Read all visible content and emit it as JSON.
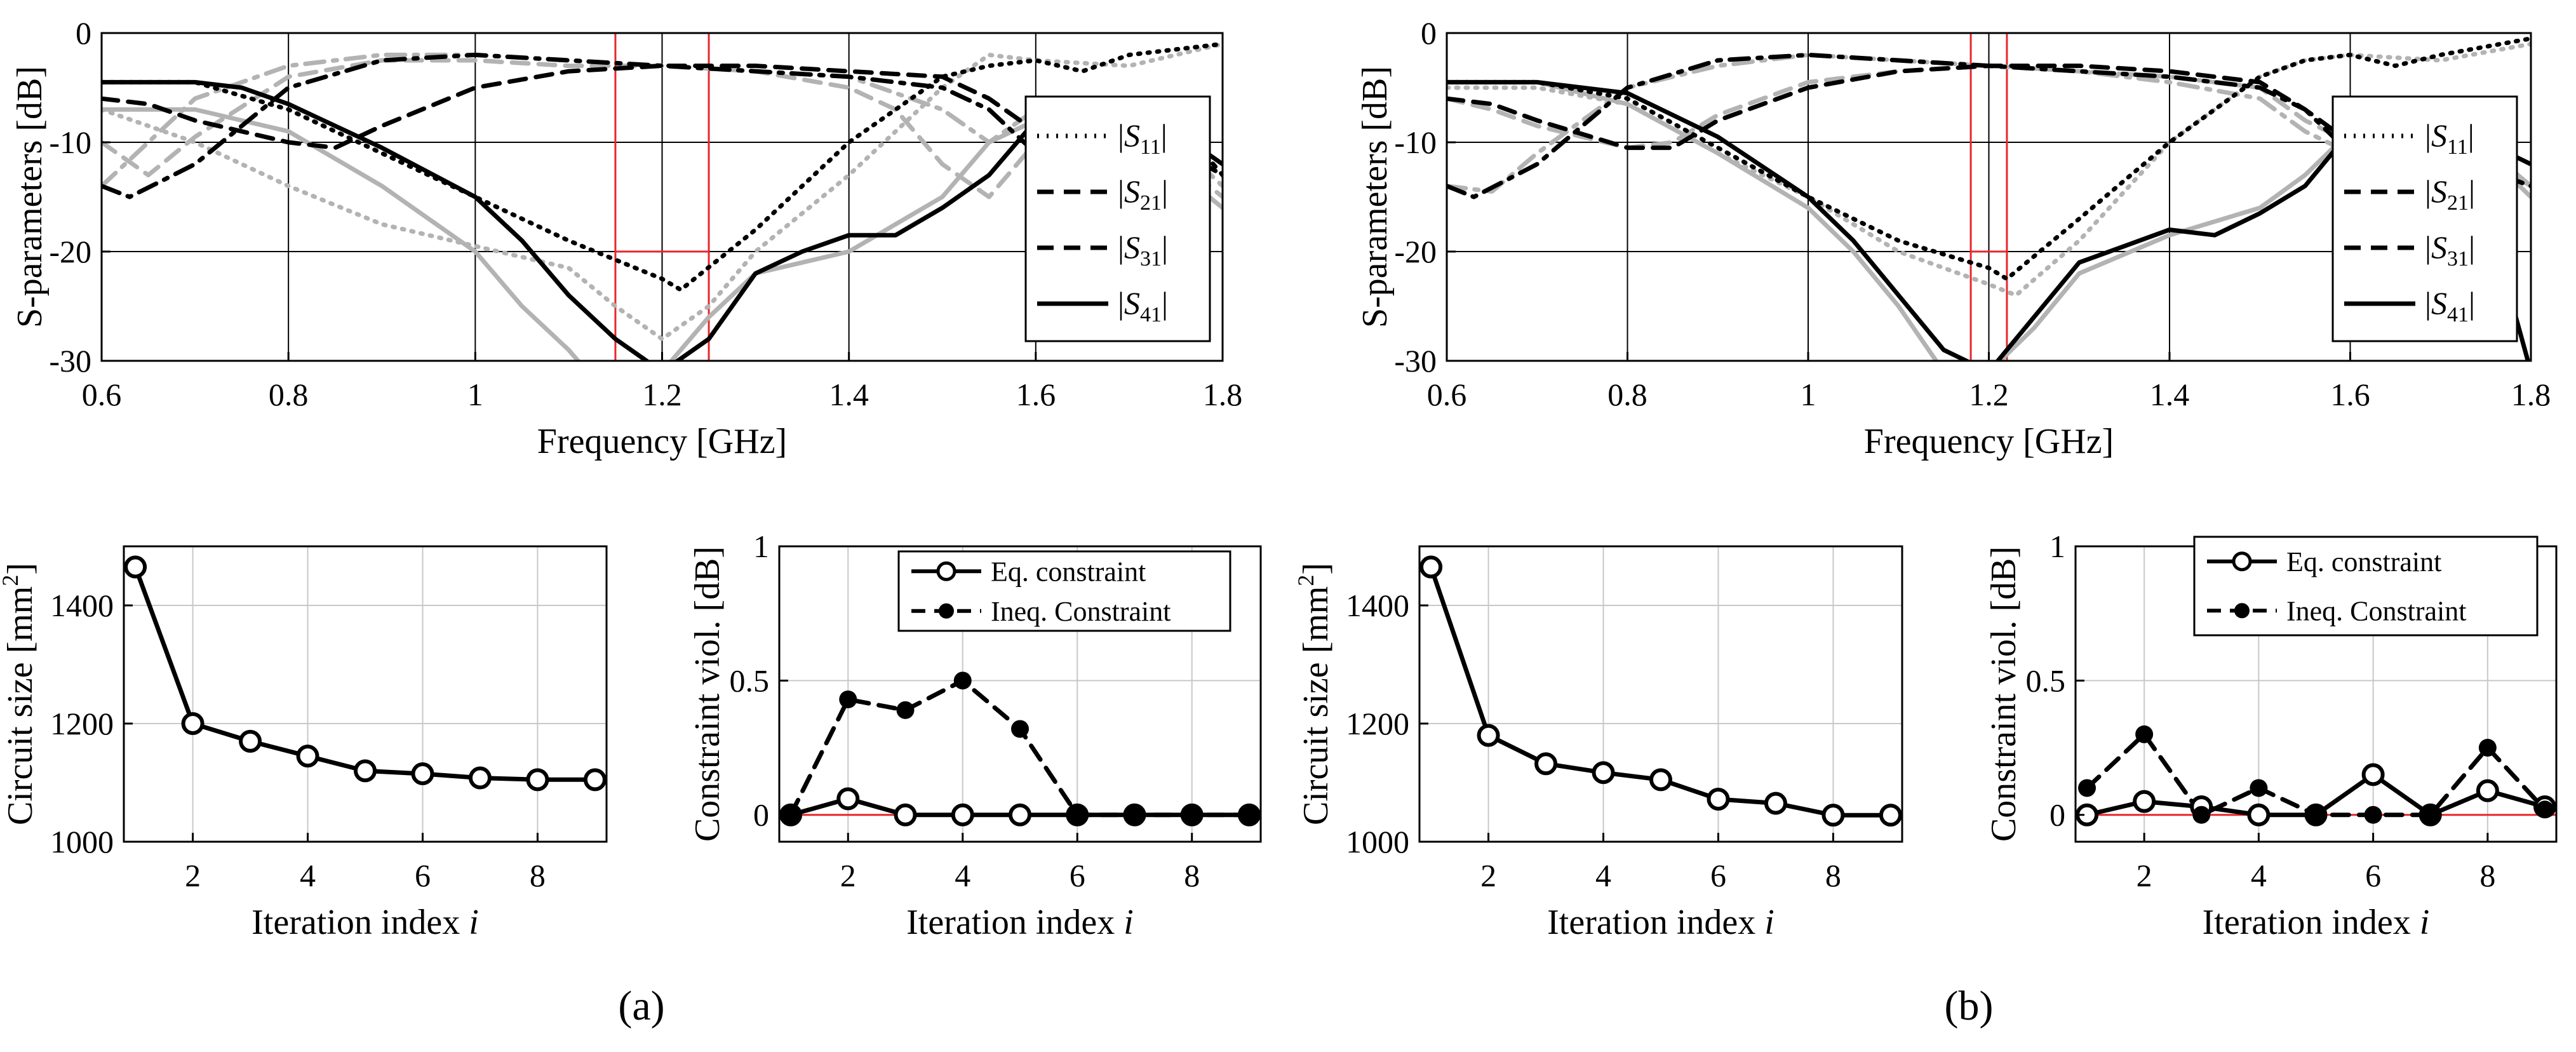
{
  "figure": {
    "panel_labels": [
      "(a)",
      "(b)"
    ],
    "s_legend": [
      "|S11|",
      "|S21|",
      "|S31|",
      "|S41|"
    ],
    "colors": {
      "final": "#000000",
      "initial": "#b3b3b3",
      "spec": "#e8262c"
    }
  },
  "chart_data": [
    {
      "id": "a_sparams",
      "type": "line",
      "xlabel": "Frequency [GHz]",
      "ylabel": "S-parameters [dB]",
      "xlim": [
        0.6,
        1.8
      ],
      "ylim": [
        -30,
        0
      ],
      "xticks": [
        0.6,
        0.8,
        1,
        1.2,
        1.4,
        1.6,
        1.8
      ],
      "yticks": [
        -30,
        -20,
        -10,
        0
      ],
      "legend": [
        "|S11|",
        "|S21|",
        "|S31|",
        "|S41|"
      ],
      "spec_lines": [
        {
          "x": [
            1.15,
            1.15
          ],
          "y": [
            -30,
            0
          ]
        },
        {
          "x": [
            1.25,
            1.25
          ],
          "y": [
            -30,
            0
          ]
        },
        {
          "x": [
            1.15,
            1.25
          ],
          "y": [
            -20,
            -20
          ]
        }
      ],
      "series": [
        {
          "name": "|S11| initial",
          "style": "dotted",
          "color": "initial",
          "x": [
            0.6,
            0.7,
            0.8,
            0.9,
            1.0,
            1.1,
            1.15,
            1.2,
            1.25,
            1.3,
            1.4,
            1.5,
            1.55,
            1.6,
            1.7,
            1.8
          ],
          "y": [
            -7,
            -10,
            -14,
            -17.5,
            -19.5,
            -21.5,
            -25,
            -28,
            -25,
            -20,
            -13,
            -5,
            -2,
            -2.5,
            -3,
            -1
          ]
        },
        {
          "name": "|S21| initial",
          "style": "dashed",
          "color": "initial",
          "x": [
            0.6,
            0.65,
            0.7,
            0.8,
            0.9,
            1.0,
            1.1,
            1.2,
            1.3,
            1.4,
            1.45,
            1.5,
            1.55,
            1.6,
            1.7,
            1.8
          ],
          "y": [
            -10,
            -13,
            -9.5,
            -4,
            -2.5,
            -2.5,
            -3,
            -3,
            -3.5,
            -5,
            -7,
            -12,
            -15,
            -10,
            -8,
            -15
          ]
        },
        {
          "name": "|S31| initial",
          "style": "dashdot",
          "color": "initial",
          "x": [
            0.6,
            0.65,
            0.7,
            0.8,
            0.9,
            1.0,
            1.1,
            1.2,
            1.3,
            1.4,
            1.5,
            1.55,
            1.6,
            1.7,
            1.8
          ],
          "y": [
            -14,
            -10,
            -6,
            -3,
            -2,
            -2,
            -2.5,
            -3,
            -3.5,
            -4,
            -7,
            -10,
            -7,
            -6,
            -14
          ]
        },
        {
          "name": "|S41| initial",
          "style": "solid",
          "color": "initial",
          "x": [
            0.6,
            0.7,
            0.8,
            0.9,
            1.0,
            1.05,
            1.1,
            1.12,
            1.2,
            1.25,
            1.3,
            1.4,
            1.5,
            1.55,
            1.6,
            1.7,
            1.8
          ],
          "y": [
            -7,
            -7,
            -9,
            -14,
            -20,
            -25,
            -29,
            -31,
            -31,
            -26,
            -22,
            -20,
            -15,
            -10,
            -8,
            -9,
            -16
          ]
        },
        {
          "name": "|S11|",
          "style": "dotted",
          "color": "final",
          "x": [
            0.6,
            0.7,
            0.8,
            0.9,
            1.0,
            1.1,
            1.2,
            1.22,
            1.3,
            1.4,
            1.5,
            1.55,
            1.6,
            1.65,
            1.7,
            1.8
          ],
          "y": [
            -4.5,
            -4.5,
            -7,
            -11,
            -15,
            -19,
            -22.5,
            -23.5,
            -18,
            -10,
            -4,
            -3,
            -2.5,
            -3.5,
            -2,
            -1
          ]
        },
        {
          "name": "|S21|",
          "style": "dashed",
          "color": "final",
          "x": [
            0.6,
            0.65,
            0.7,
            0.8,
            0.85,
            0.9,
            1.0,
            1.1,
            1.2,
            1.3,
            1.4,
            1.5,
            1.55,
            1.6,
            1.7,
            1.8
          ],
          "y": [
            -6,
            -6.5,
            -8,
            -10,
            -10.5,
            -8.5,
            -5,
            -3.5,
            -3,
            -3,
            -3.5,
            -4,
            -6,
            -9,
            -8,
            -13
          ]
        },
        {
          "name": "|S31|",
          "style": "dashdot",
          "color": "final",
          "x": [
            0.6,
            0.63,
            0.7,
            0.8,
            0.9,
            1.0,
            1.1,
            1.2,
            1.3,
            1.4,
            1.5,
            1.55,
            1.6,
            1.65,
            1.7,
            1.75,
            1.8
          ],
          "y": [
            -14,
            -15,
            -12,
            -5,
            -2.5,
            -2,
            -2.5,
            -3,
            -3.5,
            -4,
            -5,
            -7,
            -11,
            -12,
            -10,
            -8,
            -13
          ]
        },
        {
          "name": "|S41|",
          "style": "solid",
          "color": "final",
          "x": [
            0.6,
            0.7,
            0.75,
            0.8,
            0.9,
            1.0,
            1.05,
            1.1,
            1.15,
            1.2,
            1.25,
            1.3,
            1.35,
            1.4,
            1.45,
            1.5,
            1.55,
            1.6,
            1.65,
            1.7,
            1.75,
            1.8
          ],
          "y": [
            -4.5,
            -4.5,
            -5,
            -6.5,
            -10.5,
            -15,
            -19,
            -24,
            -28,
            -31,
            -28,
            -22,
            -20,
            -18.5,
            -18.5,
            -16,
            -13,
            -8,
            -6,
            -6,
            -9,
            -12
          ]
        }
      ]
    },
    {
      "id": "a_size",
      "type": "line",
      "xlabel": "Iteration index i",
      "ylabel": "Circuit size [mm²]",
      "xlim": [
        0.8,
        9.2
      ],
      "ylim": [
        1000,
        1500
      ],
      "xticks": [
        2,
        4,
        6,
        8
      ],
      "yticks": [
        1000,
        1200,
        1400
      ],
      "series": [
        {
          "name": "Circuit size",
          "style": "solid",
          "marker": "circle",
          "x": [
            1,
            2,
            3,
            4,
            5,
            6,
            7,
            8,
            9
          ],
          "y": [
            1465,
            1200,
            1170,
            1145,
            1120,
            1115,
            1108,
            1105,
            1105
          ]
        }
      ]
    },
    {
      "id": "a_viol",
      "type": "line",
      "xlabel": "Iteration index i",
      "ylabel": "Constraint viol. [dB]",
      "xlim": [
        0.8,
        9.2
      ],
      "ylim": [
        -0.1,
        1
      ],
      "xticks": [
        2,
        4,
        6,
        8
      ],
      "yticks": [
        0,
        0.5,
        1
      ],
      "legend": [
        "Eq. constraint",
        "Ineq. Constraint"
      ],
      "series": [
        {
          "name": "Eq. constraint",
          "style": "solid",
          "marker": "circle",
          "x": [
            1,
            2,
            3,
            4,
            5,
            6,
            7,
            8,
            9
          ],
          "y": [
            0,
            0.06,
            0,
            0,
            0,
            0,
            0,
            0,
            0
          ]
        },
        {
          "name": "Ineq. Constraint",
          "style": "dashed",
          "marker": "dot",
          "x": [
            1,
            2,
            3,
            4,
            5,
            6,
            7,
            8,
            9
          ],
          "y": [
            0,
            0.43,
            0.39,
            0.5,
            0.32,
            0,
            0,
            0,
            0
          ]
        }
      ]
    },
    {
      "id": "b_sparams",
      "type": "line",
      "xlabel": "Frequency [GHz]",
      "ylabel": "S-parameters [dB]",
      "xlim": [
        0.6,
        1.8
      ],
      "ylim": [
        -30,
        0
      ],
      "xticks": [
        0.6,
        0.8,
        1,
        1.2,
        1.4,
        1.6,
        1.8
      ],
      "yticks": [
        -30,
        -20,
        -10,
        0
      ],
      "legend": [
        "|S11|",
        "|S21|",
        "|S31|",
        "|S41|"
      ],
      "spec_lines": [
        {
          "x": [
            1.18,
            1.18
          ],
          "y": [
            -30,
            0
          ]
        },
        {
          "x": [
            1.22,
            1.22
          ],
          "y": [
            -30,
            0
          ]
        },
        {
          "x": [
            1.18,
            1.22
          ],
          "y": [
            -20,
            -20
          ]
        }
      ],
      "series": [
        {
          "name": "|S11| initial",
          "style": "dotted",
          "color": "initial",
          "x": [
            0.6,
            0.7,
            0.8,
            0.9,
            1.0,
            1.1,
            1.2,
            1.23,
            1.3,
            1.4,
            1.5,
            1.55,
            1.6,
            1.7,
            1.8
          ],
          "y": [
            -5,
            -5,
            -6.5,
            -11,
            -15,
            -20,
            -23,
            -24,
            -19,
            -10,
            -4,
            -2.5,
            -2,
            -2.5,
            -1
          ]
        },
        {
          "name": "|S21| initial",
          "style": "dashed",
          "color": "initial",
          "x": [
            0.6,
            0.65,
            0.7,
            0.8,
            0.85,
            0.9,
            1.0,
            1.1,
            1.2,
            1.3,
            1.4,
            1.5,
            1.55,
            1.6,
            1.7,
            1.8
          ],
          "y": [
            -6,
            -7,
            -8.5,
            -10.5,
            -10,
            -7.5,
            -4.5,
            -3.5,
            -3,
            -3.5,
            -4,
            -5,
            -8,
            -10,
            -7,
            -15
          ]
        },
        {
          "name": "|S31| initial",
          "style": "dashdot",
          "color": "initial",
          "x": [
            0.6,
            0.65,
            0.7,
            0.8,
            0.9,
            1.0,
            1.1,
            1.2,
            1.3,
            1.4,
            1.5,
            1.55,
            1.6,
            1.7,
            1.8
          ],
          "y": [
            -14,
            -14.5,
            -11,
            -5,
            -3,
            -2,
            -2.5,
            -3,
            -3.5,
            -4.5,
            -6,
            -9,
            -11,
            -9,
            -14
          ]
        },
        {
          "name": "|S41| initial",
          "style": "solid",
          "color": "initial",
          "x": [
            0.6,
            0.7,
            0.8,
            0.9,
            1.0,
            1.05,
            1.1,
            1.15,
            1.2,
            1.25,
            1.3,
            1.4,
            1.5,
            1.55,
            1.6,
            1.7,
            1.8
          ],
          "y": [
            -4.5,
            -4.5,
            -6.5,
            -11,
            -16,
            -20,
            -25,
            -31,
            -31,
            -27,
            -22,
            -18.5,
            -16,
            -13,
            -9,
            -7,
            -14
          ]
        },
        {
          "name": "|S11|",
          "style": "dotted",
          "color": "final",
          "x": [
            0.6,
            0.7,
            0.8,
            0.9,
            1.0,
            1.1,
            1.2,
            1.22,
            1.3,
            1.4,
            1.5,
            1.55,
            1.6,
            1.65,
            1.7,
            1.8
          ],
          "y": [
            -4.5,
            -4.5,
            -6,
            -10.5,
            -15,
            -19,
            -21.5,
            -22.5,
            -17,
            -10,
            -4,
            -2.5,
            -2,
            -3,
            -2,
            -0.5
          ]
        },
        {
          "name": "|S21|",
          "style": "dashed",
          "color": "final",
          "x": [
            0.6,
            0.65,
            0.7,
            0.8,
            0.85,
            0.9,
            1.0,
            1.1,
            1.2,
            1.3,
            1.4,
            1.5,
            1.55,
            1.6,
            1.7,
            1.8
          ],
          "y": [
            -6,
            -6.5,
            -8,
            -10.5,
            -10.5,
            -8,
            -5,
            -3.5,
            -3,
            -3,
            -3.5,
            -4.5,
            -7,
            -10,
            -8,
            -12
          ]
        },
        {
          "name": "|S31|",
          "style": "dashdot",
          "color": "final",
          "x": [
            0.6,
            0.63,
            0.7,
            0.8,
            0.9,
            1.0,
            1.1,
            1.2,
            1.3,
            1.4,
            1.5,
            1.55,
            1.6,
            1.65,
            1.7,
            1.8
          ],
          "y": [
            -14,
            -15,
            -12,
            -5,
            -2.5,
            -2,
            -2.5,
            -3,
            -3.5,
            -4,
            -5,
            -7,
            -11,
            -13,
            -11,
            -14
          ]
        },
        {
          "name": "|S41|",
          "style": "solid",
          "color": "final",
          "x": [
            0.6,
            0.7,
            0.8,
            0.9,
            1.0,
            1.05,
            1.1,
            1.15,
            1.2,
            1.25,
            1.3,
            1.35,
            1.4,
            1.45,
            1.5,
            1.55,
            1.6,
            1.65,
            1.7,
            1.75,
            1.8
          ],
          "y": [
            -4.5,
            -4.5,
            -5.5,
            -9.5,
            -15,
            -19,
            -24,
            -29,
            -31,
            -26,
            -21,
            -19.5,
            -18,
            -18.5,
            -16.5,
            -14,
            -9,
            -7,
            -9,
            -16,
            -31
          ]
        }
      ]
    },
    {
      "id": "b_size",
      "type": "line",
      "xlabel": "Iteration index i",
      "ylabel": "Circuit size [mm²]",
      "xlim": [
        0.8,
        9.2
      ],
      "ylim": [
        1000,
        1500
      ],
      "xticks": [
        2,
        4,
        6,
        8
      ],
      "yticks": [
        1000,
        1200,
        1400
      ],
      "series": [
        {
          "name": "Circuit size",
          "style": "solid",
          "marker": "circle",
          "x": [
            1,
            2,
            3,
            4,
            5,
            6,
            7,
            8,
            9
          ],
          "y": [
            1465,
            1180,
            1132,
            1117,
            1105,
            1072,
            1065,
            1045,
            1045
          ]
        }
      ]
    },
    {
      "id": "b_viol",
      "type": "line",
      "xlabel": "Iteration index i",
      "ylabel": "Constraint viol. [dB]",
      "xlim": [
        0.8,
        9.2
      ],
      "ylim": [
        -0.1,
        1
      ],
      "xticks": [
        2,
        4,
        6,
        8
      ],
      "yticks": [
        0,
        0.5,
        1
      ],
      "legend": [
        "Eq. constraint",
        "Ineq. Constraint"
      ],
      "series": [
        {
          "name": "Eq. constraint",
          "style": "solid",
          "marker": "circle",
          "x": [
            1,
            2,
            3,
            4,
            5,
            6,
            7,
            8,
            9
          ],
          "y": [
            0,
            0.05,
            0.03,
            0,
            0,
            0.15,
            0,
            0.09,
            0.03
          ]
        },
        {
          "name": "Ineq. Constraint",
          "style": "dashed",
          "marker": "dot",
          "x": [
            1,
            2,
            3,
            4,
            5,
            6,
            7,
            8,
            9
          ],
          "y": [
            0.1,
            0.3,
            0,
            0.1,
            0,
            0,
            0,
            0.25,
            0.02
          ]
        }
      ]
    }
  ]
}
